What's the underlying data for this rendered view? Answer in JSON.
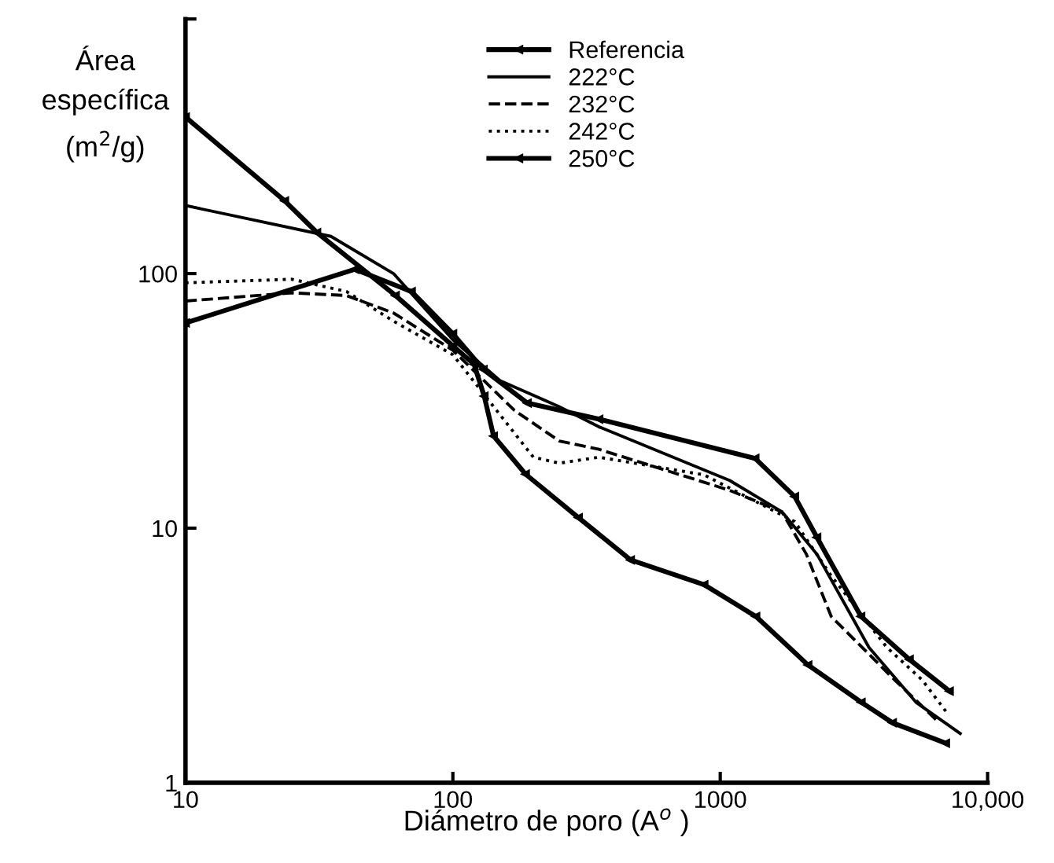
{
  "chart_data": {
    "type": "line",
    "xlabel": "Diámetro de poro (A$^{o}$ )",
    "ylabel": "Área\nespecífica\n(m$^{2}$/g)",
    "log": "xy",
    "xlim": [
      10,
      10000
    ],
    "ylim": [
      1,
      1000
    ],
    "xticks": [
      10,
      100,
      1000,
      {
        "value": 10000,
        "label": "10,000"
      }
    ],
    "yticks": [
      1,
      10,
      100,
      {
        "value": 1000,
        "label": null
      }
    ],
    "grid": false,
    "legend": "top",
    "series": [
      {
        "name": "Referencia",
        "color": "#000000",
        "marker": "triangle",
        "line_style": "solid",
        "x": [
          10,
          23.5,
          31,
          61,
          100,
          120,
          131,
          142,
          187,
          295,
          462,
          870,
          1360,
          2130,
          3370,
          4410,
          6970
        ],
        "values": [
          412,
          193,
          145,
          82,
          52,
          44,
          33,
          23,
          16.3,
          11,
          7.5,
          6.0,
          4.5,
          2.9,
          2.07,
          1.72,
          1.43
        ]
      },
      {
        "name": "222°C",
        "color": "#000000",
        "marker": "none",
        "line_style": "solid",
        "x": [
          10,
          35,
          60,
          100,
          150,
          250,
          352,
          1084,
          1700,
          2300,
          3600,
          5400,
          7900
        ],
        "values": [
          185,
          140,
          100,
          55,
          38,
          30,
          25,
          15.4,
          11.6,
          7.9,
          3.4,
          2.07,
          1.56
        ]
      },
      {
        "name": "232°C",
        "color": "#000000",
        "marker": "none",
        "line_style": "dashed",
        "x": [
          10,
          25,
          40,
          60,
          100,
          170,
          250,
          352,
          1080,
          1700,
          2100,
          2600,
          4500,
          6600
        ],
        "values": [
          78,
          84,
          82,
          70,
          50,
          29,
          22,
          20.4,
          14.1,
          11.6,
          7.9,
          4.5,
          2.53,
          1.72
        ]
      },
      {
        "name": "242°C",
        "color": "#000000",
        "marker": "none",
        "line_style": "dotted",
        "x": [
          10,
          25,
          40,
          60,
          100,
          200,
          250,
          352,
          870,
          1900,
          2600,
          4200,
          5700,
          7000
        ],
        "values": [
          92,
          95,
          85,
          65,
          48,
          19,
          18,
          19,
          16.2,
          10.6,
          6.5,
          3.4,
          2.53,
          1.9
        ]
      },
      {
        "name": "250°C",
        "color": "#000000",
        "marker": "triangle",
        "line_style": "solid",
        "x": [
          10,
          43,
          70,
          100,
          130,
          190,
          352,
          1350,
          1900,
          2300,
          3360,
          5100,
          7200
        ],
        "values": [
          64,
          104,
          85,
          58,
          42,
          31,
          26.8,
          18.8,
          13.3,
          9.2,
          4.5,
          3.05,
          2.29
        ]
      }
    ]
  }
}
